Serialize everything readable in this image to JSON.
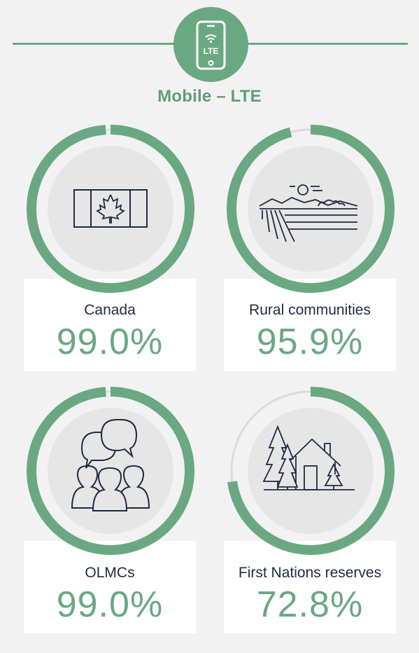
{
  "header": {
    "title": "Mobile – LTE",
    "badge_text": "LTE",
    "badge_icon": "mobile-phone-wifi-icon"
  },
  "colors": {
    "accent": "#6aa882",
    "track": "#dcdcdc",
    "icon_ink": "#1f2a44",
    "inner_circle": "#e6e6e6",
    "background": "#f2f2f2",
    "card": "#ffffff"
  },
  "chart_data": [
    {
      "type": "gauge",
      "label": "Canada",
      "value_text": "99.0%",
      "value": 99.0,
      "max": 100,
      "icon": "canada-flag-icon"
    },
    {
      "type": "gauge",
      "label": "Rural communities",
      "value_text": "95.9%",
      "value": 95.9,
      "max": 100,
      "icon": "rural-field-icon"
    },
    {
      "type": "gauge",
      "label": "OLMCs",
      "value_text": "99.0%",
      "value": 99.0,
      "max": 100,
      "icon": "people-speech-icon"
    },
    {
      "type": "gauge",
      "label": "First Nations reserves",
      "value_text": "72.8%",
      "value": 72.8,
      "max": 100,
      "icon": "house-trees-icon"
    }
  ]
}
